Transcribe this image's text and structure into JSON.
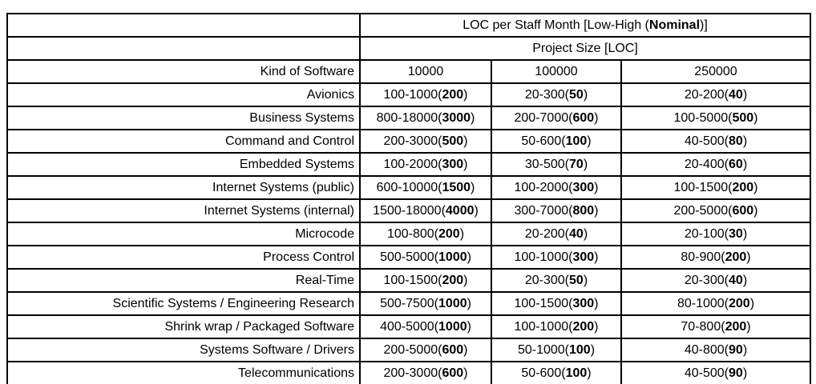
{
  "colors": {
    "background": "#ffffff",
    "text": "#000000",
    "border": "#000000"
  },
  "chart_data": {
    "type": "table",
    "title": "LOC per Staff Month [Low-High (Nominal)]",
    "title_parts": {
      "pre": "LOC per Staff Month [Low-High (",
      "bold": "Nominal",
      "post": ")]"
    },
    "subtitle": "Project Size [LOC]",
    "corner_label": "Kind of Software",
    "columns": [
      "10000",
      "100000",
      "250000"
    ],
    "value_format": "low-high(nominal)",
    "rows": [
      {
        "label": "Avionics",
        "cells": [
          {
            "low": 100,
            "high": 1000,
            "nominal": 200
          },
          {
            "low": 20,
            "high": 300,
            "nominal": 50
          },
          {
            "low": 20,
            "high": 200,
            "nominal": 40
          }
        ]
      },
      {
        "label": "Business Systems",
        "cells": [
          {
            "low": 800,
            "high": 18000,
            "nominal": 3000
          },
          {
            "low": 200,
            "high": 7000,
            "nominal": 600
          },
          {
            "low": 100,
            "high": 5000,
            "nominal": 500
          }
        ]
      },
      {
        "label": "Command and Control",
        "cells": [
          {
            "low": 200,
            "high": 3000,
            "nominal": 500
          },
          {
            "low": 50,
            "high": 600,
            "nominal": 100
          },
          {
            "low": 40,
            "high": 500,
            "nominal": 80
          }
        ]
      },
      {
        "label": "Embedded Systems",
        "cells": [
          {
            "low": 100,
            "high": 2000,
            "nominal": 300
          },
          {
            "low": 30,
            "high": 500,
            "nominal": 70
          },
          {
            "low": 20,
            "high": 400,
            "nominal": 60
          }
        ]
      },
      {
        "label": "Internet Systems (public)",
        "cells": [
          {
            "low": 600,
            "high": 10000,
            "nominal": 1500
          },
          {
            "low": 100,
            "high": 2000,
            "nominal": 300
          },
          {
            "low": 100,
            "high": 1500,
            "nominal": 200
          }
        ]
      },
      {
        "label": "Internet Systems (internal)",
        "cells": [
          {
            "low": 1500,
            "high": 18000,
            "nominal": 4000
          },
          {
            "low": 300,
            "high": 7000,
            "nominal": 800
          },
          {
            "low": 200,
            "high": 5000,
            "nominal": 600
          }
        ]
      },
      {
        "label": "Microcode",
        "cells": [
          {
            "low": 100,
            "high": 800,
            "nominal": 200
          },
          {
            "low": 20,
            "high": 200,
            "nominal": 40
          },
          {
            "low": 20,
            "high": 100,
            "nominal": 30
          }
        ]
      },
      {
        "label": "Process Control",
        "cells": [
          {
            "low": 500,
            "high": 5000,
            "nominal": 1000
          },
          {
            "low": 100,
            "high": 1000,
            "nominal": 300
          },
          {
            "low": 80,
            "high": 900,
            "nominal": 200
          }
        ]
      },
      {
        "label": "Real-Time",
        "cells": [
          {
            "low": 100,
            "high": 1500,
            "nominal": 200
          },
          {
            "low": 20,
            "high": 300,
            "nominal": 50
          },
          {
            "low": 20,
            "high": 300,
            "nominal": 40
          }
        ]
      },
      {
        "label": "Scientific Systems / Engineering Research",
        "cells": [
          {
            "low": 500,
            "high": 7500,
            "nominal": 1000
          },
          {
            "low": 100,
            "high": 1500,
            "nominal": 300
          },
          {
            "low": 80,
            "high": 1000,
            "nominal": 200
          }
        ]
      },
      {
        "label": "Shrink wrap / Packaged Software",
        "cells": [
          {
            "low": 400,
            "high": 5000,
            "nominal": 1000
          },
          {
            "low": 100,
            "high": 1000,
            "nominal": 200
          },
          {
            "low": 70,
            "high": 800,
            "nominal": 200
          }
        ]
      },
      {
        "label": "Systems Software / Drivers",
        "cells": [
          {
            "low": 200,
            "high": 5000,
            "nominal": 600
          },
          {
            "low": 50,
            "high": 1000,
            "nominal": 100
          },
          {
            "low": 40,
            "high": 800,
            "nominal": 90
          }
        ]
      },
      {
        "label": "Telecommunications",
        "cells": [
          {
            "low": 200,
            "high": 3000,
            "nominal": 600
          },
          {
            "low": 50,
            "high": 600,
            "nominal": 100
          },
          {
            "low": 40,
            "high": 500,
            "nominal": 90
          }
        ]
      }
    ]
  }
}
